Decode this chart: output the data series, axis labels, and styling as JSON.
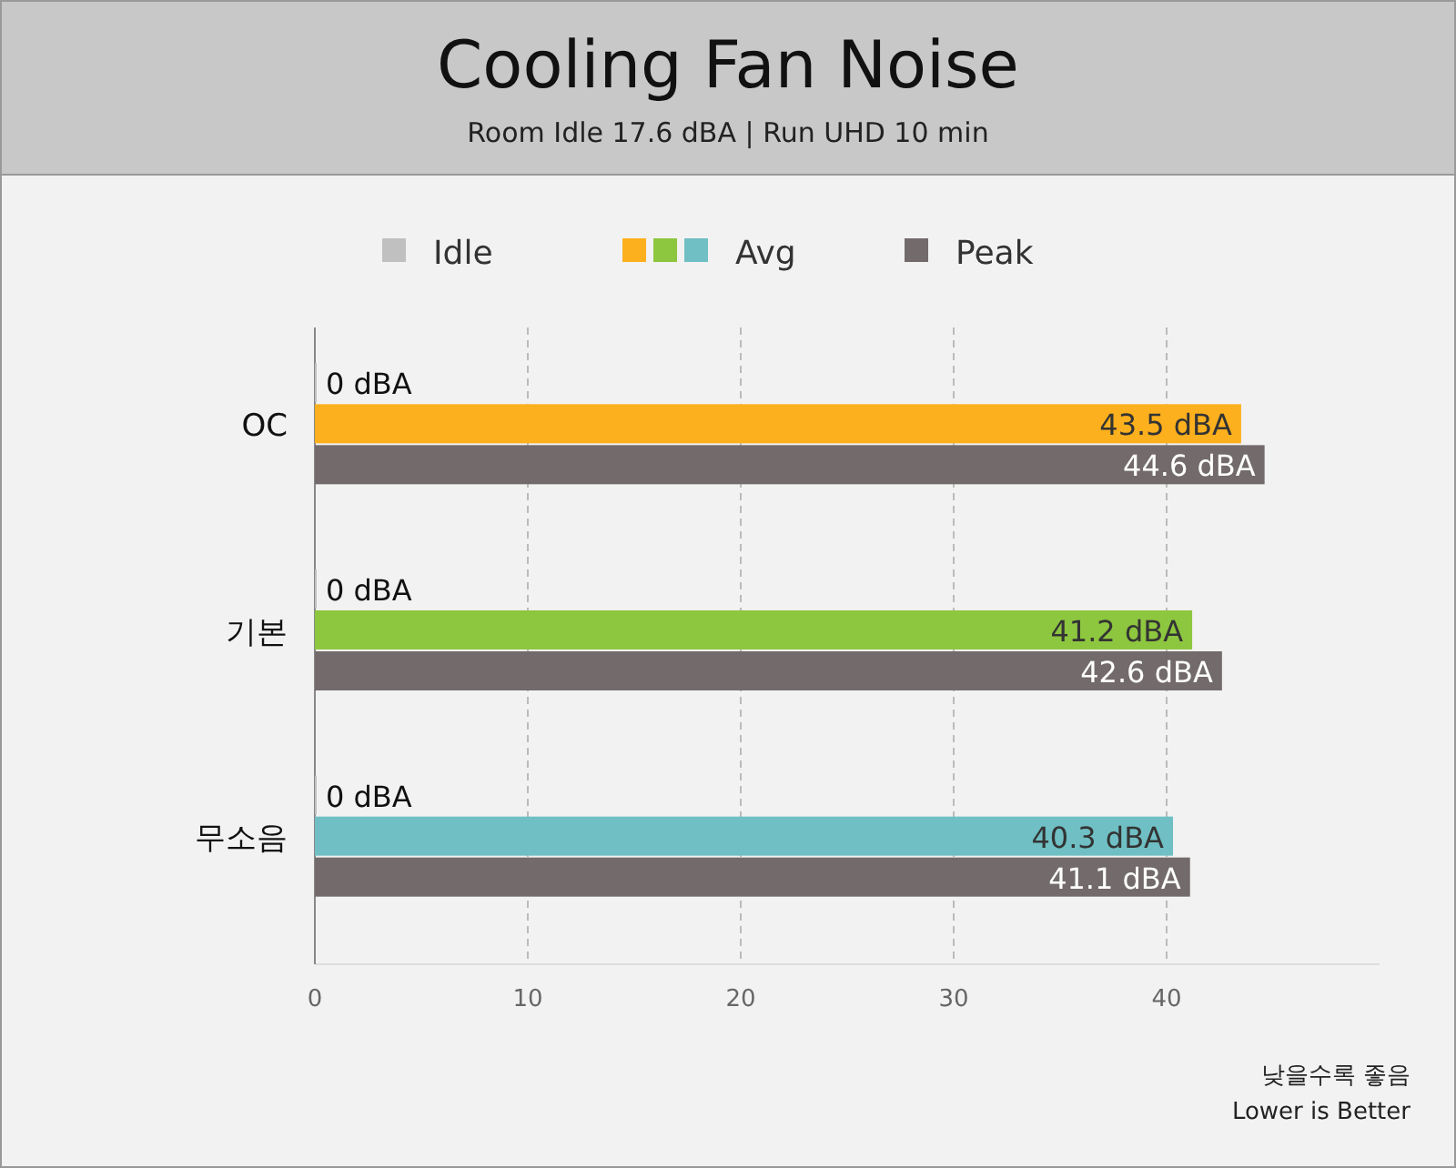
{
  "chart_data": {
    "type": "bar",
    "orientation": "horizontal",
    "title": "Cooling Fan Noise",
    "subtitle": "Room Idle 17.6 dBA  |  Run UHD 10 min",
    "categories": [
      "OC",
      "기본",
      "무소음"
    ],
    "series": [
      {
        "name": "Idle",
        "color": "#c0c0c0",
        "values": [
          0,
          0,
          0
        ],
        "value_labels": [
          "0 dBA",
          "0 dBA",
          "0 dBA"
        ]
      },
      {
        "name": "Avg",
        "colors": [
          "#fdb01d",
          "#8dc63f",
          "#6fbfc4"
        ],
        "values": [
          43.5,
          41.2,
          40.3
        ],
        "value_labels": [
          "43.5 dBA",
          "41.2 dBA",
          "40.3 dBA"
        ]
      },
      {
        "name": "Peak",
        "color": "#736b6b",
        "values": [
          44.6,
          42.6,
          41.1
        ],
        "value_labels": [
          "44.6 dBA",
          "42.6 dBA",
          "41.1 dBA"
        ]
      }
    ],
    "xlim": [
      0,
      50
    ],
    "xticks": [
      0,
      10,
      20,
      30,
      40
    ],
    "grid": "x",
    "legend": "top",
    "annotations": [
      "낮을수록 좋음",
      "Lower is Better"
    ]
  }
}
